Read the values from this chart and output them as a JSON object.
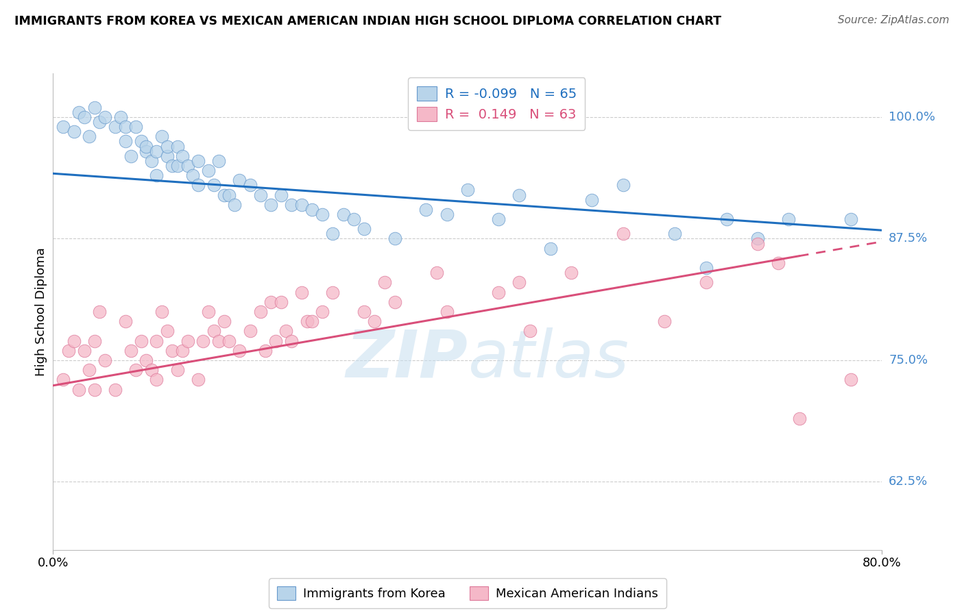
{
  "title": "IMMIGRANTS FROM KOREA VS MEXICAN AMERICAN INDIAN HIGH SCHOOL DIPLOMA CORRELATION CHART",
  "source": "Source: ZipAtlas.com",
  "ylabel": "High School Diploma",
  "yticks": [
    0.625,
    0.75,
    0.875,
    1.0
  ],
  "ytick_labels": [
    "62.5%",
    "75.0%",
    "87.5%",
    "100.0%"
  ],
  "xlim": [
    0.0,
    0.8
  ],
  "ylim": [
    0.555,
    1.045
  ],
  "blue_R": -0.099,
  "blue_N": 65,
  "pink_R": 0.149,
  "pink_N": 63,
  "blue_scatter_color": "#b8d4ea",
  "pink_scatter_color": "#f5b8c8",
  "blue_line_color": "#1f6fbf",
  "pink_line_color": "#d94f7a",
  "right_tick_color": "#4488cc",
  "watermark_color": "#d6e8f5",
  "legend_label_blue": "Immigrants from Korea",
  "legend_label_pink": "Mexican American Indians",
  "grid_color": "#cccccc",
  "background_color": "#ffffff",
  "blue_line_intercept": 0.942,
  "blue_line_slope": -0.073,
  "pink_line_intercept": 0.724,
  "pink_line_slope": 0.185,
  "blue_scatter_x": [
    0.01,
    0.02,
    0.025,
    0.03,
    0.035,
    0.04,
    0.045,
    0.05,
    0.06,
    0.065,
    0.07,
    0.07,
    0.075,
    0.08,
    0.085,
    0.09,
    0.09,
    0.095,
    0.1,
    0.1,
    0.105,
    0.11,
    0.11,
    0.115,
    0.12,
    0.12,
    0.125,
    0.13,
    0.135,
    0.14,
    0.14,
    0.15,
    0.155,
    0.16,
    0.165,
    0.17,
    0.175,
    0.18,
    0.19,
    0.2,
    0.21,
    0.22,
    0.23,
    0.24,
    0.25,
    0.26,
    0.27,
    0.28,
    0.29,
    0.3,
    0.33,
    0.36,
    0.38,
    0.4,
    0.43,
    0.45,
    0.48,
    0.52,
    0.55,
    0.6,
    0.63,
    0.65,
    0.68,
    0.71,
    0.77
  ],
  "blue_scatter_y": [
    0.99,
    0.985,
    1.005,
    1.0,
    0.98,
    1.01,
    0.995,
    1.0,
    0.99,
    1.0,
    0.99,
    0.975,
    0.96,
    0.99,
    0.975,
    0.965,
    0.97,
    0.955,
    0.965,
    0.94,
    0.98,
    0.96,
    0.97,
    0.95,
    0.97,
    0.95,
    0.96,
    0.95,
    0.94,
    0.955,
    0.93,
    0.945,
    0.93,
    0.955,
    0.92,
    0.92,
    0.91,
    0.935,
    0.93,
    0.92,
    0.91,
    0.92,
    0.91,
    0.91,
    0.905,
    0.9,
    0.88,
    0.9,
    0.895,
    0.885,
    0.875,
    0.905,
    0.9,
    0.925,
    0.895,
    0.92,
    0.865,
    0.915,
    0.93,
    0.88,
    0.845,
    0.895,
    0.875,
    0.895,
    0.895
  ],
  "pink_scatter_x": [
    0.01,
    0.015,
    0.02,
    0.025,
    0.03,
    0.035,
    0.04,
    0.04,
    0.045,
    0.05,
    0.06,
    0.07,
    0.075,
    0.08,
    0.085,
    0.09,
    0.095,
    0.1,
    0.1,
    0.105,
    0.11,
    0.115,
    0.12,
    0.125,
    0.13,
    0.14,
    0.145,
    0.15,
    0.155,
    0.16,
    0.165,
    0.17,
    0.18,
    0.19,
    0.2,
    0.205,
    0.21,
    0.215,
    0.22,
    0.225,
    0.23,
    0.24,
    0.245,
    0.25,
    0.26,
    0.27,
    0.3,
    0.31,
    0.32,
    0.33,
    0.37,
    0.38,
    0.43,
    0.45,
    0.46,
    0.5,
    0.55,
    0.59,
    0.63,
    0.68,
    0.7,
    0.72,
    0.77
  ],
  "pink_scatter_y": [
    0.73,
    0.76,
    0.77,
    0.72,
    0.76,
    0.74,
    0.77,
    0.72,
    0.8,
    0.75,
    0.72,
    0.79,
    0.76,
    0.74,
    0.77,
    0.75,
    0.74,
    0.77,
    0.73,
    0.8,
    0.78,
    0.76,
    0.74,
    0.76,
    0.77,
    0.73,
    0.77,
    0.8,
    0.78,
    0.77,
    0.79,
    0.77,
    0.76,
    0.78,
    0.8,
    0.76,
    0.81,
    0.77,
    0.81,
    0.78,
    0.77,
    0.82,
    0.79,
    0.79,
    0.8,
    0.82,
    0.8,
    0.79,
    0.83,
    0.81,
    0.84,
    0.8,
    0.82,
    0.83,
    0.78,
    0.84,
    0.88,
    0.79,
    0.83,
    0.87,
    0.85,
    0.69,
    0.73
  ]
}
